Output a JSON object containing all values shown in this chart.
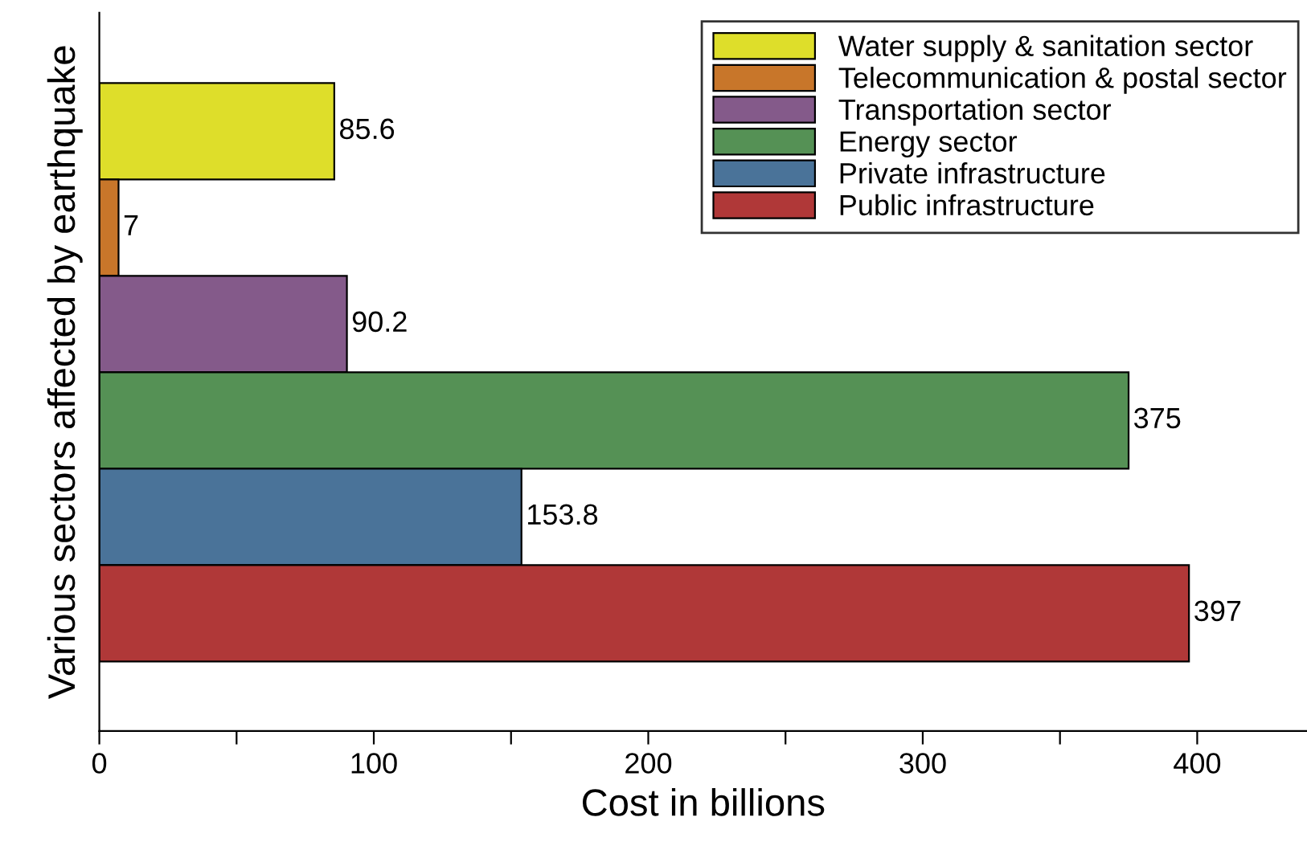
{
  "chart_data": {
    "type": "bar",
    "orientation": "horizontal",
    "xlabel": "Cost in billions",
    "ylabel": "Various sectors affected by earthquake",
    "categories": [
      null,
      null,
      null,
      null,
      null,
      null
    ],
    "series": [
      {
        "name": "Water supply & sanitation sector",
        "color": "#dede2a",
        "values": [
          85.6,
          null,
          null,
          null,
          null,
          null
        ]
      },
      {
        "name": "Telecommunication & postal sector",
        "color": "#c8762a",
        "values": [
          null,
          7,
          null,
          null,
          null,
          null
        ]
      },
      {
        "name": "Transportation sector",
        "color": "#845a8a",
        "values": [
          null,
          null,
          90.2,
          null,
          null,
          null
        ]
      },
      {
        "name": "Energy sector",
        "color": "#559155",
        "values": [
          null,
          null,
          null,
          375,
          null,
          null
        ]
      },
      {
        "name": "Private infrastructure",
        "color": "#4a7399",
        "values": [
          null,
          null,
          null,
          null,
          153.8,
          null
        ]
      },
      {
        "name": "Public infrastructure",
        "color": "#b03838",
        "values": [
          null,
          null,
          null,
          null,
          null,
          397
        ]
      }
    ],
    "xlim": [
      0,
      440
    ],
    "xticks": [
      0,
      {
        "value": 50,
        "label": null
      },
      100,
      {
        "value": 150,
        "label": null
      },
      200,
      {
        "value": 250,
        "label": null
      },
      300,
      {
        "value": 350,
        "label": null
      },
      400
    ],
    "data_labels": true,
    "legend": "top right",
    "grid": false
  }
}
